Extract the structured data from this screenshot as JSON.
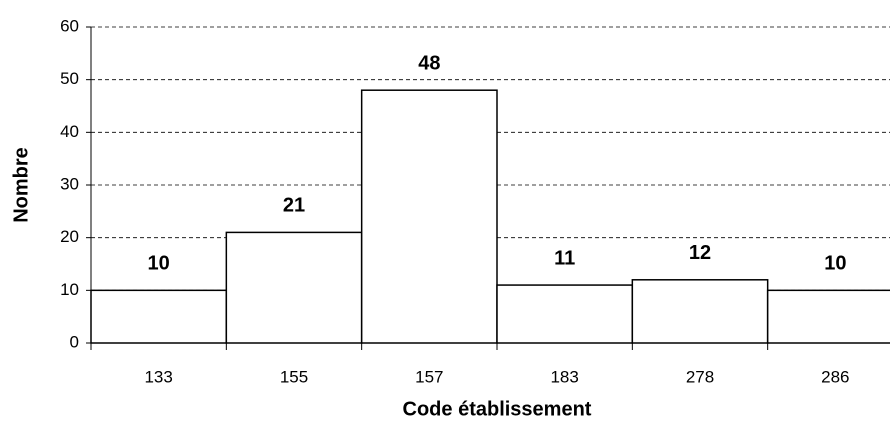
{
  "chart_data": {
    "type": "bar",
    "categories": [
      "133",
      "155",
      "157",
      "183",
      "278",
      "286"
    ],
    "values": [
      10,
      21,
      48,
      11,
      12,
      10
    ],
    "color": "#ffffff",
    "xlabel": "Code établissement",
    "ylabel": "Nombre",
    "ylim": [
      0,
      60
    ],
    "yticks": [
      0,
      10,
      20,
      30,
      40,
      50,
      60
    ],
    "grid": true
  }
}
